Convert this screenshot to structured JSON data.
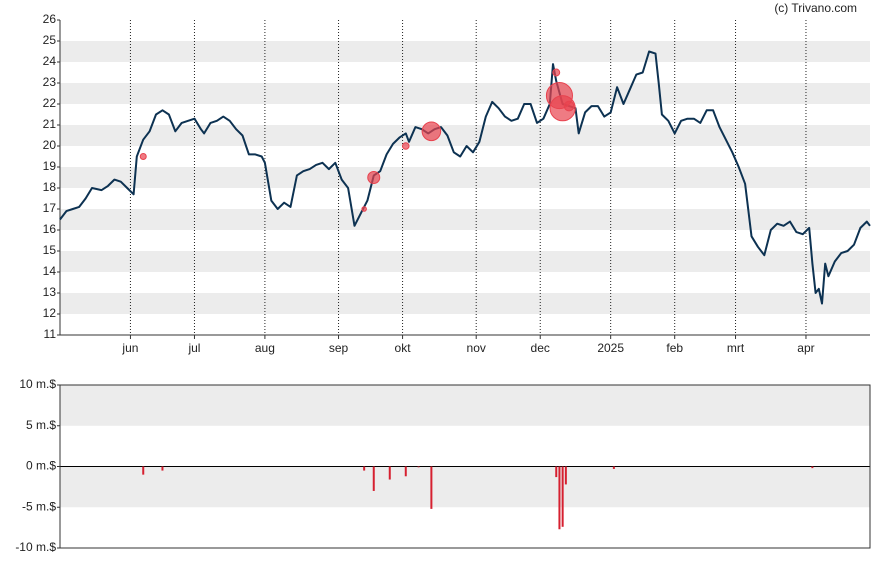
{
  "credit": "(c) Trivano.com",
  "chart_data": [
    {
      "type": "line",
      "x": [
        0,
        2,
        4,
        6,
        8,
        10,
        13,
        15,
        17,
        19,
        21,
        23,
        24,
        26,
        28,
        30,
        32,
        34,
        36,
        38,
        40,
        42,
        44,
        45,
        47,
        49,
        51,
        53,
        55,
        57,
        59,
        61,
        63,
        64,
        66,
        68,
        70,
        72,
        74,
        76,
        78,
        80,
        82,
        84,
        86,
        88,
        90,
        92,
        94,
        96,
        98,
        100,
        102,
        104,
        106,
        108,
        109,
        111,
        113,
        115,
        117,
        119,
        121,
        123,
        125,
        127,
        129,
        131,
        133,
        135,
        137,
        139,
        141,
        143,
        145,
        147,
        149,
        151,
        153,
        154,
        155,
        157,
        159,
        161,
        162,
        164,
        166,
        168,
        170,
        172,
        174,
        176,
        178,
        180,
        182,
        184,
        186,
        187,
        188,
        190,
        192,
        194,
        196,
        198,
        200,
        202,
        204,
        206,
        208,
        210,
        212,
        214,
        216,
        218,
        220,
        222,
        224,
        226,
        228,
        230,
        232,
        234,
        235,
        236,
        237,
        238,
        239,
        240,
        242,
        244,
        246,
        248,
        250,
        252,
        253
      ],
      "series": [
        {
          "color": "#0d3252",
          "values": [
            16.5,
            16.9,
            17.0,
            17.1,
            17.5,
            18.0,
            17.9,
            18.1,
            18.4,
            18.3,
            18.0,
            17.7,
            19.5,
            20.3,
            20.7,
            21.5,
            21.7,
            21.5,
            20.7,
            21.1,
            21.2,
            21.3,
            20.8,
            20.6,
            21.1,
            21.2,
            21.4,
            21.2,
            20.8,
            20.5,
            19.6,
            19.6,
            19.5,
            19.2,
            17.4,
            17.0,
            17.3,
            17.1,
            18.6,
            18.8,
            18.9,
            19.1,
            19.2,
            18.9,
            19.2,
            18.4,
            18.0,
            16.2,
            16.8,
            17.4,
            18.6,
            18.8,
            19.6,
            20.1,
            20.4,
            20.6,
            20.2,
            20.9,
            20.8,
            20.6,
            20.8,
            20.9,
            20.5,
            19.7,
            19.5,
            20.0,
            19.7,
            20.2,
            21.4,
            22.1,
            21.8,
            21.4,
            21.2,
            21.3,
            22.0,
            22.0,
            21.1,
            21.3,
            22.0,
            23.9,
            23.1,
            22.0,
            21.9,
            21.8,
            20.6,
            21.6,
            21.9,
            21.9,
            21.4,
            21.6,
            22.8,
            22.0,
            22.7,
            23.4,
            23.5,
            24.5,
            24.4,
            23.0,
            21.5,
            21.2,
            20.6,
            21.2,
            21.3,
            21.3,
            21.1,
            21.7,
            21.7,
            20.9,
            20.3,
            19.7,
            19.0,
            18.2,
            15.7,
            15.2,
            14.8,
            16.0,
            16.3,
            16.2,
            16.4,
            15.9,
            15.8,
            16.1,
            14.4,
            13.0,
            13.2,
            12.5,
            14.4,
            13.8,
            14.5,
            14.9,
            15.0,
            15.3,
            16.1,
            16.4,
            16.2
          ]
        }
      ],
      "bubbles": {
        "color": "#e8434f",
        "x": [
          26,
          95,
          98,
          108,
          116,
          155,
          156,
          157,
          159
        ],
        "y": [
          19.5,
          17.0,
          18.5,
          20.0,
          20.7,
          23.5,
          22.4,
          21.8,
          21.9
        ],
        "sizes": [
          1.0,
          0.5,
          3.0,
          1.2,
          5.2,
          1.3,
          7.7,
          7.4,
          2.2
        ]
      },
      "xlim": [
        0,
        253
      ],
      "xticks": [
        {
          "value": 22,
          "label": "jun"
        },
        {
          "value": 42,
          "label": "jul"
        },
        {
          "value": 64,
          "label": "aug"
        },
        {
          "value": 87,
          "label": "sep"
        },
        {
          "value": 107,
          "label": "okt"
        },
        {
          "value": 130,
          "label": "nov"
        },
        {
          "value": 150,
          "label": "dec"
        },
        {
          "value": 172,
          "label": "2025"
        },
        {
          "value": 192,
          "label": "feb"
        },
        {
          "value": 211,
          "label": "mrt"
        },
        {
          "value": 233,
          "label": "apr"
        }
      ],
      "ylim": [
        11,
        26
      ],
      "yticks": [
        11,
        12,
        13,
        14,
        15,
        16,
        17,
        18,
        19,
        20,
        21,
        22,
        23,
        24,
        25,
        26
      ],
      "grid": true
    },
    {
      "type": "bar",
      "x": [
        26,
        32,
        95,
        98,
        103,
        108,
        112,
        116,
        155,
        156,
        157,
        158,
        173,
        235
      ],
      "values": [
        -1.0,
        -0.5,
        -0.5,
        -3.0,
        -1.6,
        -1.2,
        -0.1,
        -5.2,
        -1.3,
        -7.7,
        -7.4,
        -2.2,
        -0.3,
        -0.2
      ],
      "color": "#d62030",
      "xlim": [
        0,
        253
      ],
      "ylim": [
        -10,
        10
      ],
      "yticks": [
        {
          "value": -10,
          "label": "-10 m.$"
        },
        {
          "value": -5,
          "label": "-5 m.$"
        },
        {
          "value": 0,
          "label": "0 m.$"
        },
        {
          "value": 5,
          "label": "5 m.$"
        },
        {
          "value": 10,
          "label": "10 m.$"
        }
      ],
      "grid": true
    }
  ]
}
